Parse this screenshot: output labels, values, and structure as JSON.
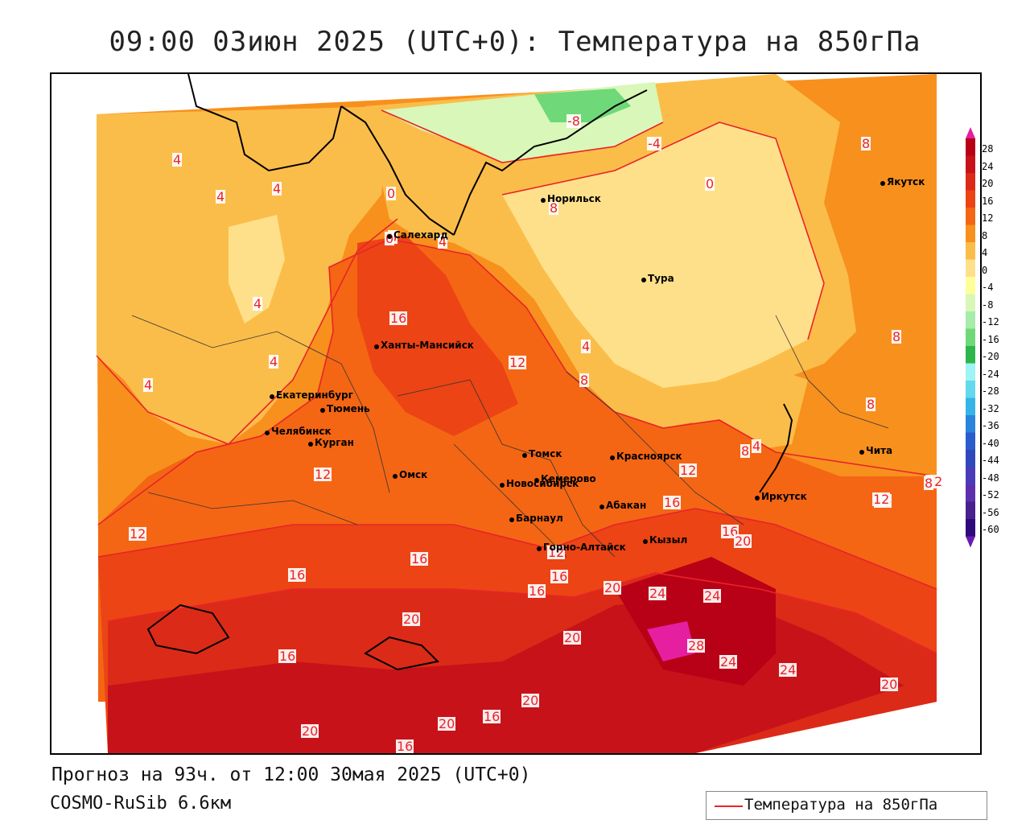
{
  "title": "09:00 03июн 2025 (UTC+0): Температура на 850гПа",
  "footer": {
    "forecast": "Прогноз на 93ч. от 12:00 30мая 2025 (UTC+0)",
    "model": "COSMO-RuSib 6.6км"
  },
  "legend": {
    "label": "Температура на 850гПа",
    "line_color": "#e8242a"
  },
  "colorbar": {
    "labels": [
      "28",
      "24",
      "20",
      "16",
      "12",
      "8",
      "4",
      "0",
      "-4",
      "-8",
      "-12",
      "-16",
      "-20",
      "-24",
      "-28",
      "-32",
      "-36",
      "-40",
      "-44",
      "-48",
      "-52",
      "-56",
      "-60"
    ],
    "colors": [
      "#b80016",
      "#c8121a",
      "#dc2a18",
      "#ec4414",
      "#f46614",
      "#f8901e",
      "#fbbd4a",
      "#ffe08a",
      "#ffff9a",
      "#d8f7b8",
      "#a6ecaa",
      "#6fd878",
      "#2eb64a",
      "#9ff4f4",
      "#64d8ec",
      "#36b4e8",
      "#2a84dc",
      "#2a5ccc",
      "#3048bc",
      "#4a3cb8",
      "#5c30ac",
      "#4a208c",
      "#2e0a7a"
    ]
  },
  "cities": [
    {
      "name": "Якутск"
    },
    {
      "name": "Норильск"
    },
    {
      "name": "Тура"
    },
    {
      "name": "Салехард"
    },
    {
      "name": "Ханты-Мансийск"
    },
    {
      "name": "Екатеринбург"
    },
    {
      "name": "Тюмень"
    },
    {
      "name": "Челябинск"
    },
    {
      "name": "Курган"
    },
    {
      "name": "Омск"
    },
    {
      "name": "Новосибирск"
    },
    {
      "name": "Томск"
    },
    {
      "name": "Кемерово"
    },
    {
      "name": "Красноярск"
    },
    {
      "name": "Абакан"
    },
    {
      "name": "Барнаул"
    },
    {
      "name": "Горно-Алтайск"
    },
    {
      "name": "Кызыл"
    },
    {
      "name": "Иркутск"
    },
    {
      "name": "Чита"
    }
  ],
  "isotherm_labels": [
    "-8",
    "-4",
    "0",
    "8",
    "4",
    "4",
    "4",
    "0",
    "8",
    "8",
    "4",
    "4",
    "0",
    "4",
    "16",
    "12",
    "4",
    "8",
    "4",
    "8",
    "8",
    "4",
    "8",
    "12",
    "12",
    "12",
    "16",
    "16",
    "12",
    "16",
    "16",
    "12",
    "16",
    "16",
    "16",
    "20",
    "20",
    "16",
    "20",
    "24",
    "24",
    "28",
    "24",
    "24",
    "20",
    "20",
    "20",
    "20",
    "20",
    "16",
    "16",
    "8",
    "12"
  ]
}
